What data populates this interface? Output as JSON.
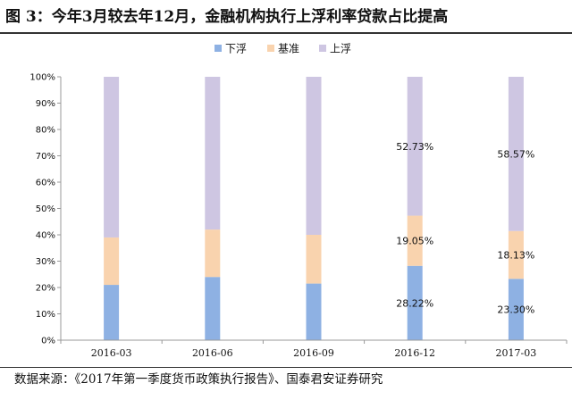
{
  "title": "图 3：今年3月较去年12月，金融机构执行上浮利率贷款占比提高",
  "source": "数据来源：《2017年第一季度货币政策执行报告》、国泰君安证券研究",
  "colors": {
    "below": "#8EB1E3",
    "base": "#F9D3AE",
    "above": "#CEC6E2",
    "axis": "#999999"
  },
  "chart_data": {
    "type": "bar",
    "stacked": true,
    "categories": [
      "2016-03",
      "2016-06",
      "2016-09",
      "2016-12",
      "2017-03"
    ],
    "series": [
      {
        "name": "下浮",
        "values": [
          21,
          24,
          21.5,
          28.22,
          23.3
        ]
      },
      {
        "name": "基准",
        "values": [
          18,
          18,
          18.5,
          19.05,
          18.13
        ]
      },
      {
        "name": "上浮",
        "values": [
          61,
          58,
          60,
          52.73,
          58.57
        ]
      }
    ],
    "data_labels": [
      null,
      null,
      null,
      [
        "28.22%",
        "19.05%",
        "52.73%"
      ],
      [
        "23.30%",
        "18.13%",
        "58.57%"
      ]
    ],
    "y_ticks": [
      "0%",
      "10%",
      "20%",
      "30%",
      "40%",
      "50%",
      "60%",
      "70%",
      "80%",
      "90%",
      "100%"
    ],
    "ylim": [
      0,
      100
    ],
    "legend_position": "top-center",
    "grid": false
  }
}
